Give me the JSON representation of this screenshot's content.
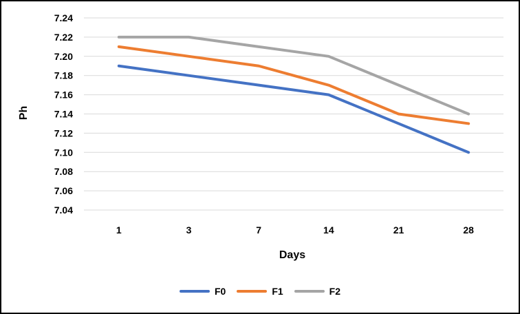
{
  "chart_data": {
    "type": "line",
    "title": "",
    "xlabel": "Days",
    "ylabel": "Ph",
    "categories": [
      "1",
      "3",
      "7",
      "14",
      "21",
      "28"
    ],
    "series": [
      {
        "name": "F0",
        "color": "#4472C4",
        "values": [
          7.19,
          7.18,
          7.17,
          7.16,
          7.13,
          7.1
        ]
      },
      {
        "name": "F1",
        "color": "#ED7D31",
        "values": [
          7.21,
          7.2,
          7.19,
          7.17,
          7.14,
          7.13
        ]
      },
      {
        "name": "F2",
        "color": "#A5A5A5",
        "values": [
          7.22,
          7.22,
          7.21,
          7.2,
          7.17,
          7.14
        ]
      }
    ],
    "ylim": [
      7.04,
      7.24
    ],
    "y_tick_step": 0.02,
    "y_ticks": [
      "7.24",
      "7.22",
      "7.20",
      "7.18",
      "7.16",
      "7.14",
      "7.12",
      "7.10",
      "7.08",
      "7.06",
      "7.04"
    ],
    "grid": "horizontal",
    "legend_position": "bottom",
    "gridline_color": "#D9D9D9",
    "text_color": "#000000",
    "frame_border_color": "#000000",
    "line_width": 4
  }
}
